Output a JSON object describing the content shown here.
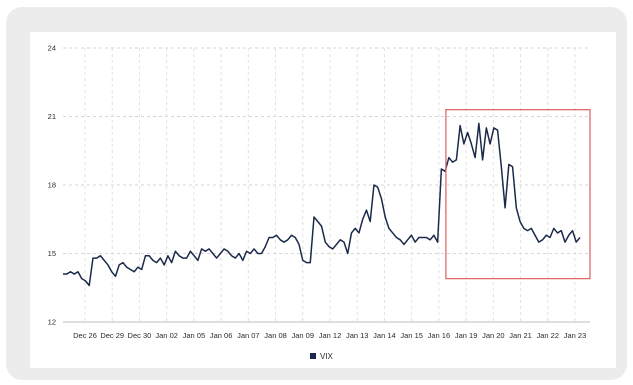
{
  "chart_data": {
    "type": "line",
    "title": "",
    "xlabel": "",
    "ylabel": "",
    "ylim": [
      12,
      24
    ],
    "yticks": [
      "24",
      "21",
      "18",
      "15",
      "12"
    ],
    "x_tick_labels": [
      "Dec 26",
      "Dec 29",
      "Dec 30",
      "Jan 02",
      "Jan 05",
      "Jan 06",
      "Jan 07",
      "Jan 08",
      "Jan 09",
      "Jan 12",
      "Jan 13",
      "Jan 14",
      "Jan 15",
      "Jan 16",
      "Jan 19",
      "Jan 20",
      "Jan 21",
      "Jan 22",
      "Jan 23"
    ],
    "grid": true,
    "legend": "bottom-center",
    "highlight": {
      "from": "Jan 16",
      "to": "Jan 23",
      "color": "#e06a6a"
    },
    "series": [
      {
        "name": "VIX",
        "color": "#1b2a4a",
        "values": [
          14.1,
          14.1,
          14.2,
          14.1,
          14.2,
          13.9,
          13.8,
          13.6,
          14.8,
          14.8,
          14.9,
          14.7,
          14.5,
          14.2,
          14.0,
          14.5,
          14.6,
          14.4,
          14.3,
          14.2,
          14.4,
          14.3,
          14.9,
          14.9,
          14.7,
          14.6,
          14.8,
          14.5,
          14.9,
          14.6,
          15.1,
          14.9,
          14.8,
          14.8,
          15.1,
          14.9,
          14.7,
          15.2,
          15.1,
          15.2,
          15.0,
          14.8,
          15.0,
          15.2,
          15.1,
          14.9,
          14.8,
          15.0,
          14.7,
          15.1,
          15.0,
          15.2,
          15.0,
          15.0,
          15.3,
          15.7,
          15.7,
          15.8,
          15.6,
          15.5,
          15.6,
          15.8,
          15.7,
          15.4,
          14.7,
          14.6,
          14.6,
          16.6,
          16.4,
          16.2,
          15.5,
          15.3,
          15.2,
          15.4,
          15.6,
          15.5,
          15.0,
          15.9,
          16.1,
          15.9,
          16.5,
          16.9,
          16.4,
          18.0,
          17.9,
          17.4,
          16.6,
          16.1,
          15.9,
          15.7,
          15.6,
          15.4,
          15.6,
          15.8,
          15.5,
          15.7,
          15.7,
          15.7,
          15.6,
          15.8,
          15.5,
          18.7,
          18.6,
          19.2,
          19.0,
          19.1,
          20.6,
          19.8,
          20.3,
          19.8,
          19.2,
          20.7,
          19.1,
          20.5,
          19.8,
          20.5,
          20.4,
          18.8,
          17.0,
          18.9,
          18.8,
          17.0,
          16.4,
          16.1,
          16.0,
          16.1,
          15.8,
          15.5,
          15.6,
          15.8,
          15.7,
          16.1,
          15.9,
          16.0,
          15.5,
          15.8,
          16.0,
          15.5,
          15.7
        ]
      }
    ]
  }
}
